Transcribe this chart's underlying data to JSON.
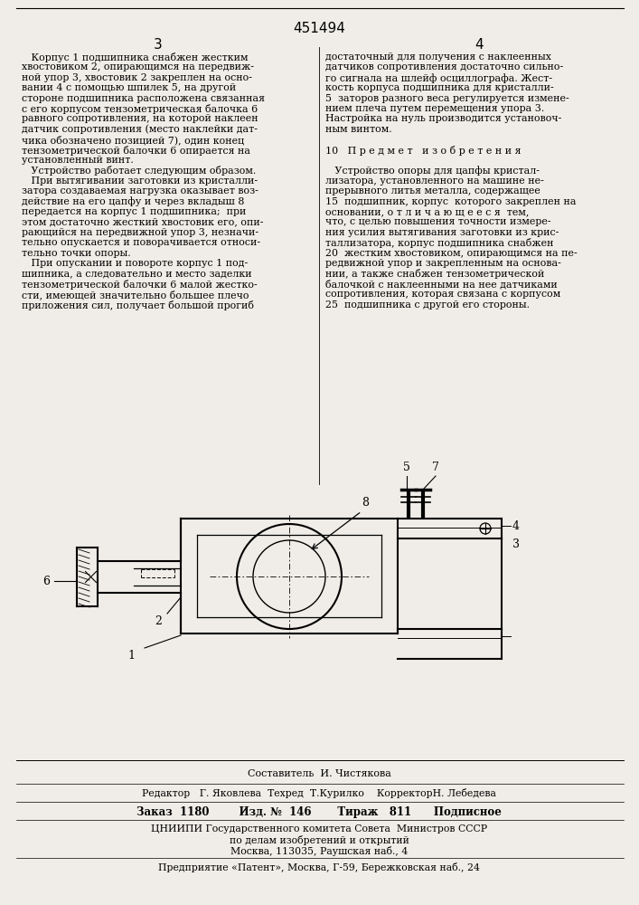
{
  "bg_color": "#f0ede8",
  "patent_number": "451494",
  "col_left_num": "3",
  "col_right_num": "4",
  "text_left": [
    "   Корпус 1 подшипника снабжен жестким",
    "хвостовиком 2, опирающимся на передвиж-",
    "ной упор 3, хвостовик 2 закреплен на осно-",
    "вании 4 с помощью шпилек 5, на другой",
    "стороне подшипника расположена связанная",
    "с его корпусом тензометрическая балочка 6",
    "равного сопротивления, на которой наклеен",
    "датчик сопротивления (место наклейки дат-",
    "чика обозначено позицией 7), один конец",
    "тензометрической балочки 6 опирается на",
    "установленный винт.",
    "   Устройство работает следующим образом.",
    "   При вытягивании заготовки из кристалли-",
    "затора создаваемая нагрузка оказывает воз-",
    "действие на его цапфу и через вкладыш 8",
    "передается на корпус 1 подшипника;  при",
    "этом достаточно жесткий хвостовик его, опи-",
    "рающийся на передвижной упор 3, незначи-",
    "тельно опускается и поворачивается относи-",
    "тельно точки опоры.",
    "   При опускании и повороте корпус 1 под-",
    "шипника, а следовательно и место заделки",
    "тензометрической балочки 6 малой жестко-",
    "сти, имеющей значительно большее плечо",
    "приложения сил, получает большой прогиб"
  ],
  "text_right": [
    "достаточный для получения с наклеенных",
    "датчиков сопротивления достаточно сильно-",
    "го сигнала на шлейф осциллографа. Жест-",
    "кость корпуса подшипника для кристалли-",
    "5  заторов разного веса регулируется измене-",
    "нием плеча путем перемещения упора 3.",
    "Настройка на нуль производится установоч-",
    "ным винтом.",
    "",
    "10   П р е д м е т   и з о б р е т е н и я",
    "",
    "   Устройство опоры для цапфы кристал-",
    "лизатора, установленного на машине не-",
    "прерывного литья металла, содержащее",
    "15  подшипник, корпус  которого закреплен на",
    "основании, о т л и ч а ю щ е е с я  тем,",
    "что, с целью повышения точности измере-",
    "ния усилия вытягивания заготовки из крис-",
    "таллизатора, корпус подшипника снабжен",
    "20  жестким хвостовиком, опирающимся на пе-",
    "редвижной упор и закрепленным на основа-",
    "нии, а также снабжен тензометрической",
    "балочкой с наклеенными на нее датчиками",
    "сопротивления, которая связана с корпусом",
    "25  подшипника с другой его стороны."
  ],
  "footer_composer": "Составитель  И. Чистякова",
  "footer_editor": "Редактор   Г. Яковлева  Техред  Т.Курилко    КорректорН. Лебедева",
  "footer_order": "Заказ  1180        Изд. №  146       Тираж   811      Подписное",
  "footer_inst1": "ЦНИИПИ Государственного комитета Совета  Министров СССР",
  "footer_inst2": "по делам изобретений и открытий",
  "footer_inst3": "Москва, 113035, Раушская наб., 4",
  "footer_company": "Предприятие «Патент», Москва, Г-59, Бережковская наб., 24"
}
